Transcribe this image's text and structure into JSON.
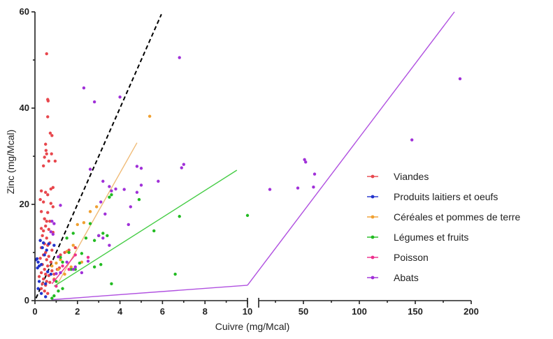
{
  "chart_data": {
    "type": "scatter",
    "title": "",
    "xlabel": "Cuivre (mg/Mcal)",
    "ylabel": "Zinc (mg/Mcal)",
    "ylim": [
      0,
      60
    ],
    "y_ticks": [
      "0",
      "20",
      "40",
      "60"
    ],
    "x_axis_broken": true,
    "x_segments": [
      {
        "range": [
          0,
          10
        ],
        "ticks": [
          "0",
          "2",
          "4",
          "6",
          "8",
          "10"
        ]
      },
      {
        "range": [
          10,
          200
        ],
        "ticks": [
          "50",
          "100",
          "150",
          "200"
        ]
      }
    ],
    "legend_position": "right",
    "series": [
      {
        "name": "Viandes",
        "color": "#e8474d",
        "points": [
          [
            0.55,
            51.3
          ],
          [
            0.6,
            41.8
          ],
          [
            0.62,
            41.5
          ],
          [
            0.6,
            38.2
          ],
          [
            0.72,
            34.8
          ],
          [
            0.8,
            34.3
          ],
          [
            0.5,
            32.5
          ],
          [
            0.52,
            31.2
          ],
          [
            0.55,
            30.5
          ],
          [
            0.78,
            30.5
          ],
          [
            0.45,
            29.8
          ],
          [
            0.65,
            29
          ],
          [
            0.95,
            29
          ],
          [
            0.4,
            28
          ],
          [
            0.85,
            23.5
          ],
          [
            0.75,
            23.2
          ],
          [
            0.3,
            22.8
          ],
          [
            0.5,
            22.5
          ],
          [
            0.6,
            22
          ],
          [
            0.25,
            21
          ],
          [
            0.4,
            20.5
          ],
          [
            0.75,
            20.2
          ],
          [
            0.85,
            19.5
          ],
          [
            0.3,
            18.5
          ],
          [
            0.6,
            18.3
          ],
          [
            0.45,
            17
          ],
          [
            0.55,
            16.5
          ],
          [
            0.7,
            16.5
          ],
          [
            0.5,
            15.5
          ],
          [
            0.3,
            15
          ],
          [
            0.65,
            14.8
          ],
          [
            0.4,
            14.5
          ],
          [
            0.85,
            14.2
          ],
          [
            0.35,
            13.5
          ],
          [
            0.55,
            13
          ],
          [
            0.25,
            12.5
          ],
          [
            0.7,
            12
          ],
          [
            0.45,
            11.8
          ],
          [
            0.6,
            11.5
          ],
          [
            0.3,
            11
          ],
          [
            0.8,
            10.5
          ],
          [
            0.5,
            10
          ],
          [
            0.4,
            9.5
          ],
          [
            0.65,
            9.2
          ],
          [
            0.25,
            8.8
          ],
          [
            0.55,
            8.5
          ],
          [
            0.75,
            8
          ],
          [
            0.35,
            7.5
          ],
          [
            0.6,
            7.2
          ],
          [
            0.45,
            6.5
          ],
          [
            0.8,
            6.2
          ],
          [
            0.3,
            5.8
          ],
          [
            0.5,
            5.5
          ],
          [
            0.65,
            5.2
          ],
          [
            0.2,
            5
          ],
          [
            0.4,
            4.5
          ],
          [
            0.55,
            4
          ],
          [
            0.7,
            3.8
          ],
          [
            0.35,
            3.5
          ],
          [
            0.5,
            3.2
          ],
          [
            1.05,
            6.5
          ],
          [
            1.15,
            6.8
          ],
          [
            0.9,
            5.5
          ],
          [
            1.2,
            9.5
          ],
          [
            1.4,
            10
          ],
          [
            1.6,
            10.5
          ],
          [
            1.9,
            11
          ],
          [
            0.3,
            2.5
          ],
          [
            0.45,
            2
          ],
          [
            0.6,
            1.5
          ]
        ]
      },
      {
        "name": "Produits laitiers et oeufs",
        "color": "#2233cc",
        "points": [
          [
            0.1,
            8.7
          ],
          [
            0.05,
            8.5
          ],
          [
            0.15,
            8
          ],
          [
            0.2,
            7.2
          ],
          [
            0.12,
            6.8
          ],
          [
            0.25,
            12.5
          ],
          [
            0.4,
            12
          ],
          [
            0.65,
            11.8
          ],
          [
            0.9,
            11.5
          ],
          [
            0.35,
            11
          ],
          [
            0.55,
            10.5
          ],
          [
            0.45,
            9.5
          ],
          [
            0.3,
            7.5
          ],
          [
            0.6,
            6
          ],
          [
            0.75,
            5.5
          ],
          [
            0.2,
            4
          ],
          [
            0.5,
            3.5
          ],
          [
            0.15,
            2.5
          ],
          [
            0.3,
            1.5
          ],
          [
            0.5,
            0.8
          ]
        ]
      },
      {
        "name": "Céréales et pommes de terre",
        "color": "#f0a030",
        "points": [
          [
            5.4,
            38.3
          ],
          [
            0.8,
            7.2
          ],
          [
            1.0,
            7.8
          ],
          [
            1.2,
            8.5
          ],
          [
            1.5,
            10.2
          ],
          [
            1.8,
            11.5
          ],
          [
            2.0,
            15.8
          ],
          [
            2.3,
            16.2
          ],
          [
            2.6,
            18.5
          ],
          [
            2.9,
            19.5
          ],
          [
            1.1,
            6.5
          ],
          [
            0.9,
            4.5
          ],
          [
            1.4,
            5.5
          ],
          [
            1.7,
            7.0
          ],
          [
            2.2,
            8.0
          ]
        ]
      },
      {
        "name": "Légumes et fruits",
        "color": "#22bb22",
        "points": [
          [
            10,
            17.7
          ],
          [
            6.8,
            17.5
          ],
          [
            6.6,
            5.5
          ],
          [
            5.6,
            14.5
          ],
          [
            4.9,
            21
          ],
          [
            3.6,
            22
          ],
          [
            3.5,
            21.5
          ],
          [
            3.2,
            14
          ],
          [
            3.0,
            13.5
          ],
          [
            2.8,
            12.5
          ],
          [
            2.6,
            16
          ],
          [
            2.4,
            13
          ],
          [
            2.2,
            9.8
          ],
          [
            2.1,
            7.8
          ],
          [
            1.8,
            14
          ],
          [
            1.9,
            6.5
          ],
          [
            1.6,
            10
          ],
          [
            1.5,
            13
          ],
          [
            1.3,
            8
          ],
          [
            1.2,
            9
          ],
          [
            1.0,
            4
          ],
          [
            1.1,
            2
          ],
          [
            0.9,
            1
          ],
          [
            0.8,
            0.5
          ],
          [
            1.3,
            2.5
          ],
          [
            3.6,
            3.5
          ],
          [
            3.1,
            7.5
          ],
          [
            2.8,
            7
          ],
          [
            3.4,
            13.5
          ],
          [
            1.7,
            6.5
          ]
        ]
      },
      {
        "name": "Poisson",
        "color": "#ee2e8c",
        "points": [
          [
            1.9,
            9.5
          ],
          [
            2.5,
            9
          ],
          [
            1.6,
            6.5
          ],
          [
            1.3,
            7.2
          ],
          [
            0.9,
            4.3
          ],
          [
            1.0,
            3
          ]
        ]
      },
      {
        "name": "Abats",
        "color": "#a030d8",
        "points": [
          [
            6.8,
            50.5
          ],
          [
            2.3,
            44.2
          ],
          [
            4.0,
            42.3
          ],
          [
            2.8,
            41.3
          ],
          [
            7.0,
            28.3
          ],
          [
            6.9,
            27.6
          ],
          [
            4.8,
            27.9
          ],
          [
            5.0,
            27.5
          ],
          [
            2.6,
            27.3
          ],
          [
            5.8,
            24.8
          ],
          [
            5.0,
            24
          ],
          [
            3.2,
            24.8
          ],
          [
            3.5,
            23.7
          ],
          [
            3.8,
            23.2
          ],
          [
            4.2,
            23.1
          ],
          [
            4.8,
            22.5
          ],
          [
            3.6,
            22.8
          ],
          [
            3.1,
            20.5
          ],
          [
            4.5,
            19.5
          ],
          [
            3.3,
            18
          ],
          [
            4.4,
            15.8
          ],
          [
            3.0,
            13.5
          ],
          [
            3.5,
            11.5
          ],
          [
            3.2,
            13
          ],
          [
            1.9,
            7
          ],
          [
            1.5,
            8
          ],
          [
            2.5,
            8.2
          ],
          [
            1.2,
            19.8
          ],
          [
            0.8,
            16.5
          ],
          [
            0.9,
            16
          ],
          [
            0.75,
            14.3
          ],
          [
            0.85,
            13.8
          ],
          [
            1.8,
            6.5
          ],
          [
            1.2,
            5.8
          ],
          [
            1.1,
            9.1
          ],
          [
            2.2,
            5.8
          ],
          [
            1.0,
            5.6
          ],
          [
            190,
            46.1
          ],
          [
            147,
            33.4
          ],
          [
            51,
            29.3
          ],
          [
            52,
            28.8
          ],
          [
            60,
            26.3
          ],
          [
            59,
            23.6
          ],
          [
            45,
            23.4
          ],
          [
            20,
            23.1
          ]
        ]
      }
    ],
    "reference_lines": [
      {
        "kind": "identity-like dashed",
        "color": "#000000",
        "dashed": true,
        "from": [
          0.05,
          0.5
        ],
        "to": [
          5.95,
          59.5
        ]
      },
      {
        "series": "Céréales et pommes de terre",
        "color": "#f0bb77",
        "from": [
          1.0,
          3.0
        ],
        "to": [
          4.8,
          32.8
        ]
      },
      {
        "series": "Légumes et fruits",
        "color": "#44cc44",
        "from": [
          0.9,
          3.0
        ],
        "to": [
          9.5,
          27.1
        ]
      },
      {
        "series": "Poisson",
        "color": "#ee2e8c",
        "from": [
          0.8,
          3.5
        ],
        "to": [
          1.9,
          9.5
        ]
      },
      {
        "series": "Abats",
        "color": "#b050e0",
        "from": [
          0.8,
          0.2
        ],
        "to": [
          10,
          3.2
        ]
      },
      {
        "series": "Abats",
        "color": "#b050e0",
        "from": [
          10,
          3.2
        ],
        "to": [
          185,
          60
        ]
      }
    ]
  }
}
